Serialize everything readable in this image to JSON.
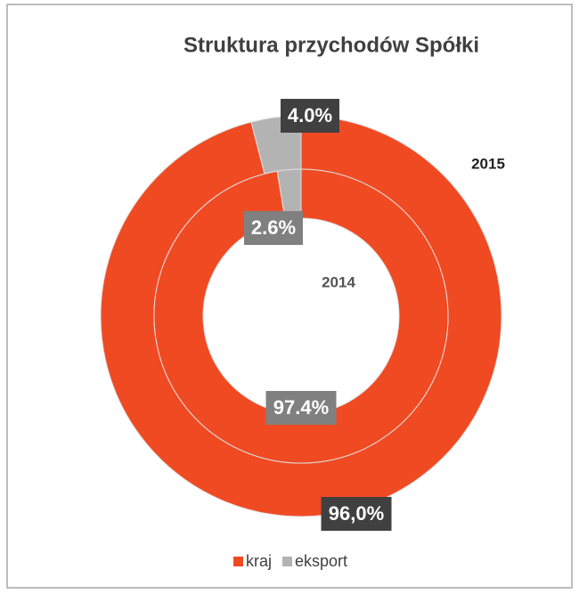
{
  "chart_data": {
    "type": "donut",
    "title": "Struktura przychodów Spółki",
    "categories": [
      "kraj",
      "eksport"
    ],
    "colors": [
      "#f04a23",
      "#b3b3b3"
    ],
    "series": [
      {
        "name": "2015",
        "values": [
          96.0,
          4.0
        ],
        "value_labels": [
          "96,0%",
          "4.0%"
        ]
      },
      {
        "name": "2014",
        "values": [
          97.4,
          2.6
        ],
        "value_labels": [
          "97.4%",
          "2.6%"
        ]
      }
    ]
  }
}
